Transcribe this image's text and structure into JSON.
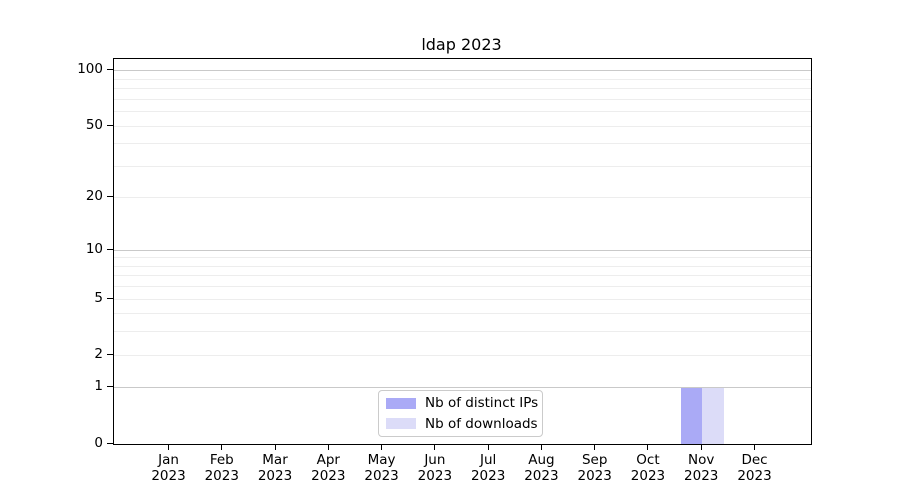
{
  "chart_data": {
    "type": "bar",
    "title": "ldap 2023",
    "months": [
      "Jan",
      "Feb",
      "Mar",
      "Apr",
      "May",
      "Jun",
      "Jul",
      "Aug",
      "Sep",
      "Oct",
      "Nov",
      "Dec"
    ],
    "year": "2023",
    "yscale": "log1p",
    "ylim": [
      0,
      116
    ],
    "y_ticks": [
      0,
      1,
      2,
      5,
      10,
      20,
      50,
      100
    ],
    "y_gridlines_major": [
      1,
      10,
      100
    ],
    "y_gridlines_minor": [
      2,
      3,
      4,
      5,
      6,
      7,
      8,
      9,
      20,
      30,
      40,
      50,
      60,
      70,
      80,
      90
    ],
    "grid": true,
    "legend_position": "lower center",
    "series": [
      {
        "name": "Nb of distinct IPs",
        "color": "#aaaaf6",
        "values": [
          0,
          0,
          0,
          0,
          0,
          0,
          0,
          0,
          0,
          0,
          1,
          0
        ]
      },
      {
        "name": "Nb of downloads",
        "color": "#dcdcf8",
        "values": [
          0,
          0,
          0,
          0,
          0,
          0,
          0,
          0,
          0,
          0,
          1,
          0
        ]
      }
    ],
    "colors": {
      "axis": "#000000",
      "text": "#000000",
      "grid_major": "#c9c9c9",
      "grid_minor": "#ededed",
      "legend_border": "#cbcbcb"
    }
  }
}
